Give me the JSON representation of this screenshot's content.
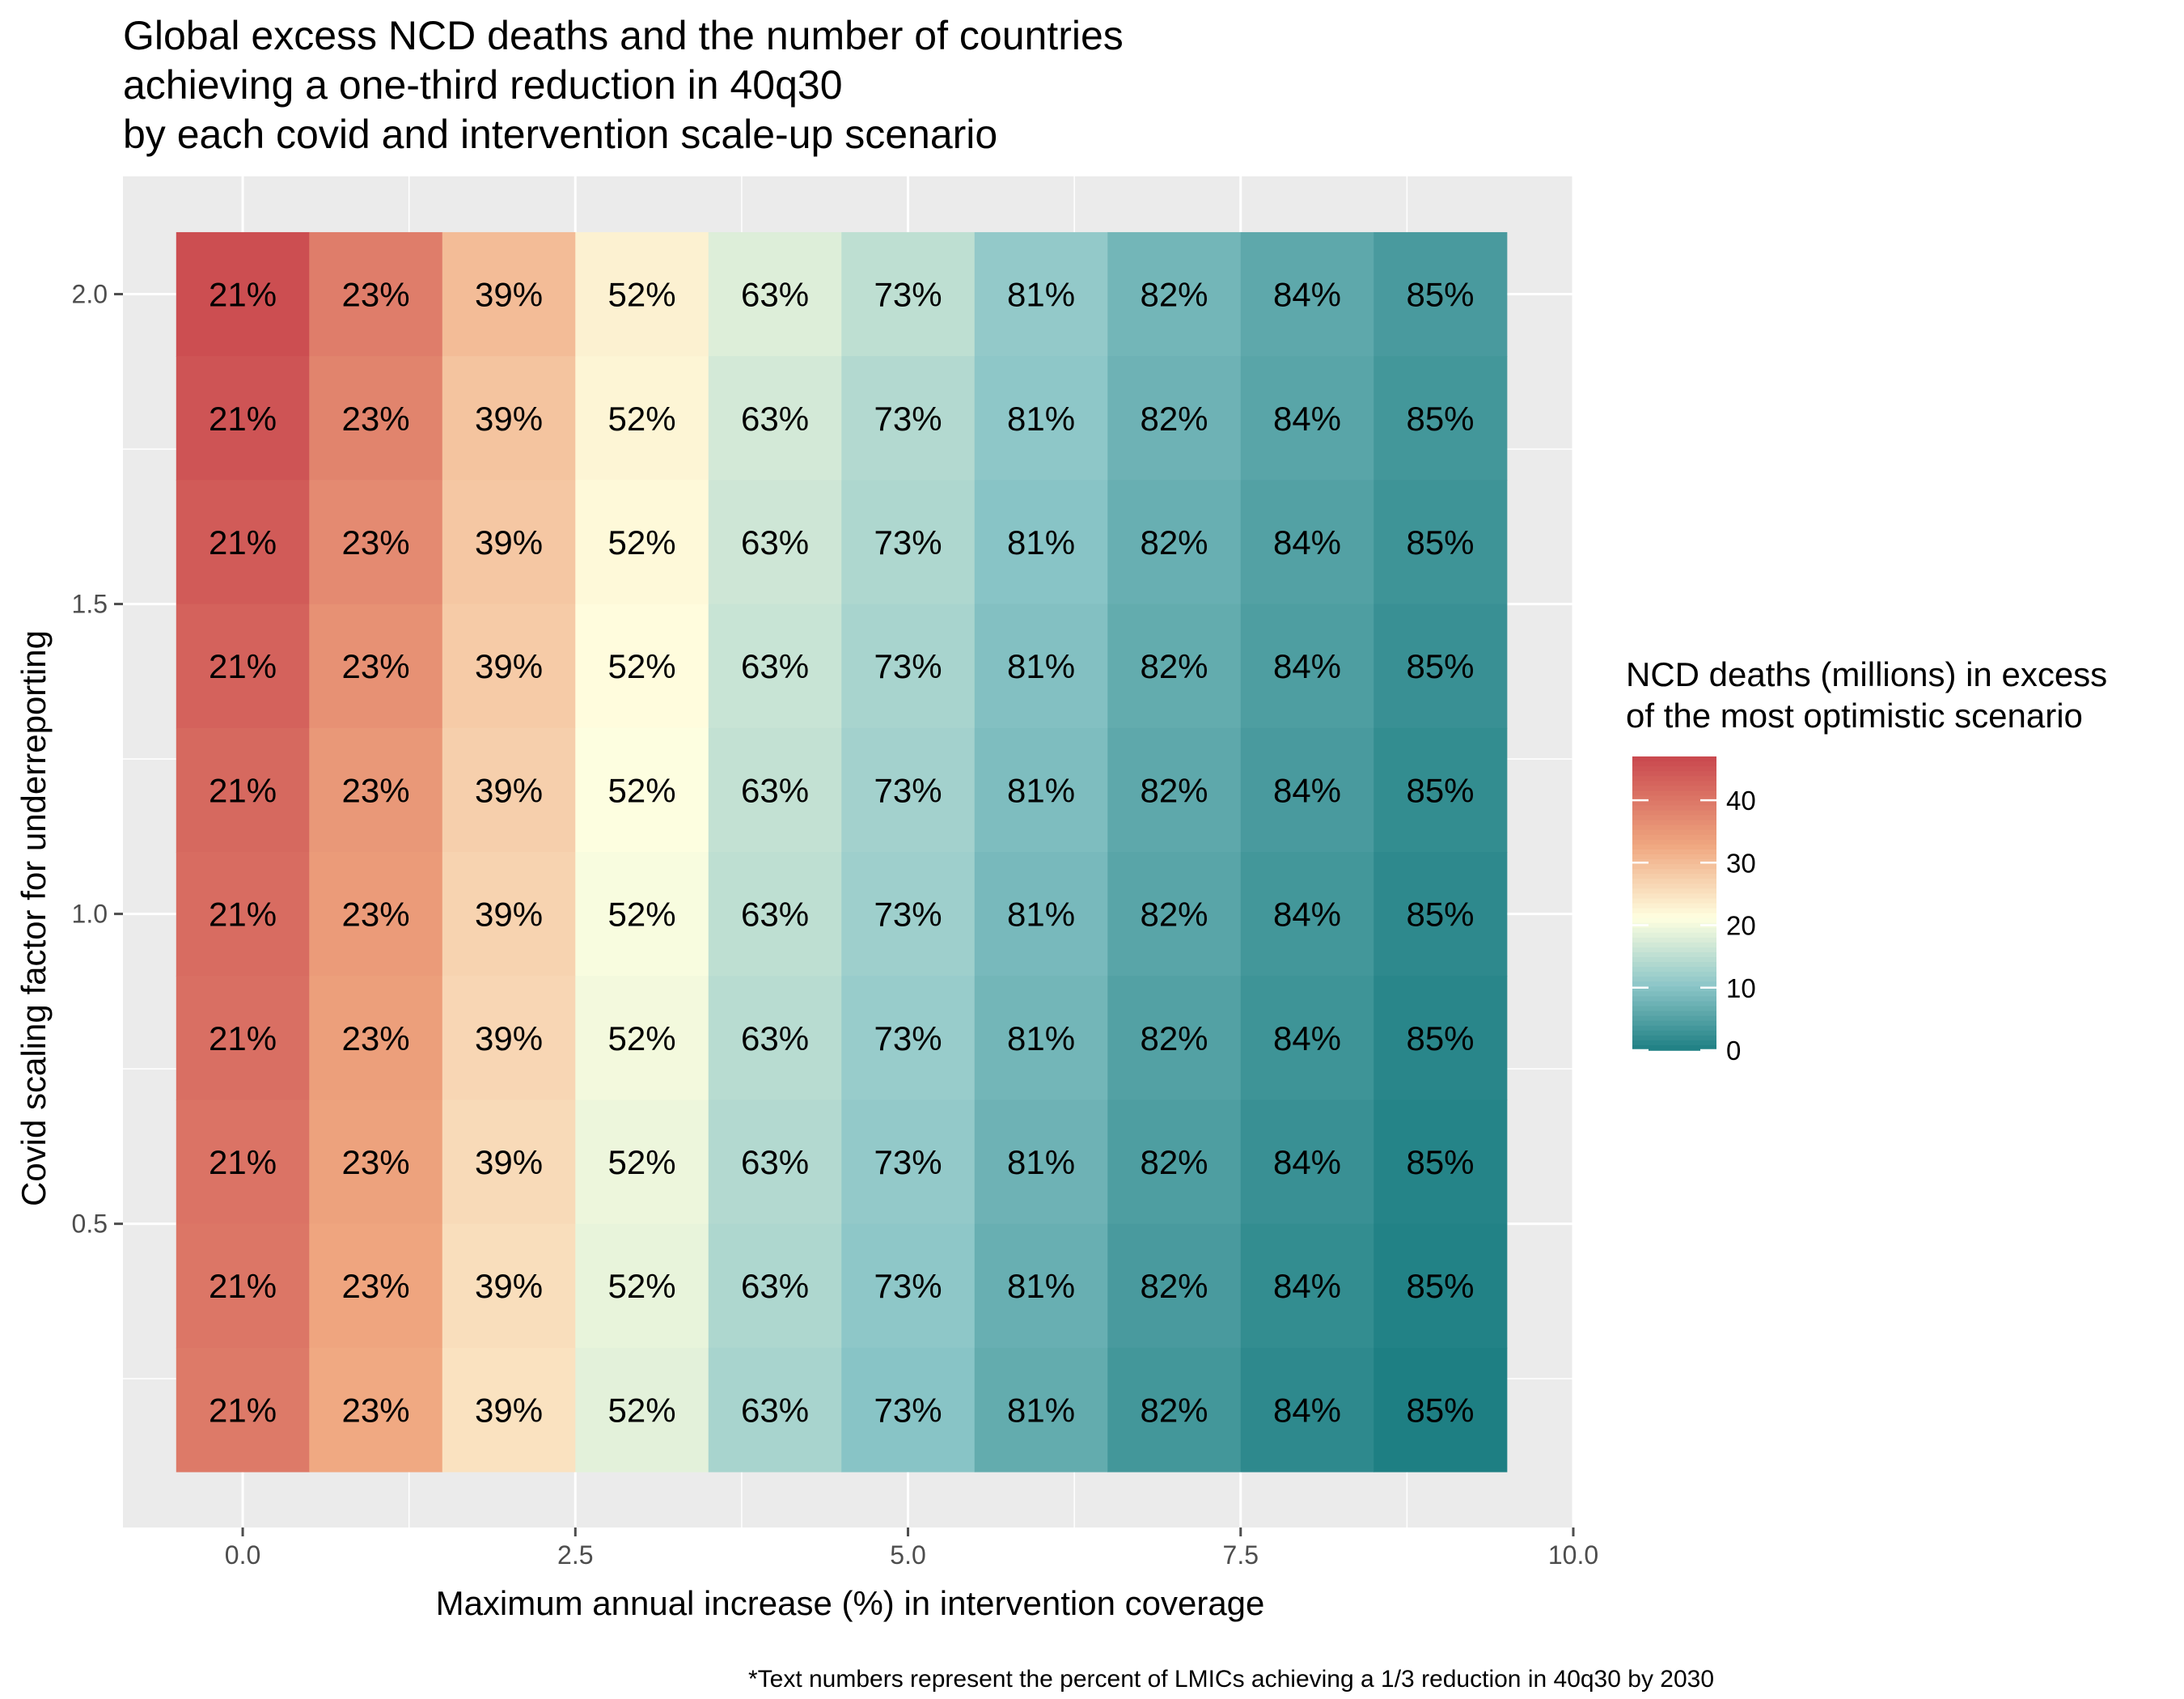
{
  "chart_data": {
    "type": "heatmap",
    "title": [
      "Global excess NCD deaths and the number of countries",
      "achieving a one-third reduction in 40q30",
      "by each covid and intervention scale-up scenario"
    ],
    "xlabel": "Maximum annual increase (%) in intervention coverage",
    "ylabel": "Covid scaling factor for underreporting",
    "xlim": [
      -0.9,
      10.0
    ],
    "ylim": [
      0.01,
      2.19
    ],
    "x_ticks": [
      0.0,
      2.5,
      5.0,
      7.5,
      10.0
    ],
    "x_tick_labels": [
      "0.0",
      "2.5",
      "5.0",
      "7.5",
      "10.0"
    ],
    "y_ticks": [
      0.5,
      1.0,
      1.5,
      2.0
    ],
    "y_tick_labels": [
      "0.5",
      "1.0",
      "1.5",
      "2.0"
    ],
    "grid": true,
    "x": [
      0,
      1,
      2,
      3,
      4,
      5,
      6,
      7,
      8,
      9
    ],
    "y": [
      2.0,
      1.8,
      1.6,
      1.4,
      1.2,
      1.0,
      0.8,
      0.6,
      0.4,
      0.2
    ],
    "cell_labels": [
      "21%",
      "23%",
      "39%",
      "52%",
      "63%",
      "73%",
      "81%",
      "82%",
      "84%",
      "85%"
    ],
    "values": [
      [
        46,
        39,
        30,
        23,
        18,
        15,
        11,
        8,
        6,
        4
      ],
      [
        45,
        38,
        29,
        22.5,
        17,
        14,
        10.5,
        7.5,
        5.5,
        3.5
      ],
      [
        44,
        37,
        28.5,
        22,
        16.5,
        13.5,
        10,
        7,
        5,
        3
      ],
      [
        43,
        36,
        28,
        21.5,
        16,
        13,
        9.5,
        6.5,
        4.5,
        2.5
      ],
      [
        42,
        35,
        27.5,
        21,
        15.5,
        12.5,
        9,
        6,
        4,
        2
      ],
      [
        41.5,
        34.5,
        27,
        20.5,
        15,
        12,
        8.5,
        5.5,
        3.5,
        1.5
      ],
      [
        41,
        34,
        26.5,
        20,
        14.5,
        11.5,
        8,
        5,
        3,
        1
      ],
      [
        40.5,
        33.5,
        26,
        19.5,
        14,
        11,
        7.5,
        4.5,
        2.5,
        0.7
      ],
      [
        40,
        33,
        25.5,
        19,
        13.5,
        10.5,
        7,
        4,
        2,
        0.4
      ],
      [
        39.5,
        32.5,
        25,
        18.5,
        13,
        10,
        6.5,
        3.5,
        1.5,
        0
      ]
    ],
    "legend": {
      "title": [
        "NCD deaths (millions) in excess",
        "of the most optimistic scenario"
      ],
      "placement": "right",
      "min": 0,
      "max": 47,
      "ticks": [
        0,
        10,
        20,
        30,
        40
      ],
      "tick_labels": [
        "0",
        "10",
        "20",
        "30",
        "40"
      ]
    },
    "colors": {
      "low": "#1E7F83",
      "low_mid": "#8CC6C8",
      "mid": "#FFFFE0",
      "high_mid": "#EFA67F",
      "high": "#C9474E",
      "panel": "#EBEBEB",
      "grid": "#FFFFFF",
      "tick": "#4D4D4D"
    },
    "annotation": "*Text numbers represent the percent of LMICs achieving a 1/3 reduction in 40q30 by 2030"
  }
}
